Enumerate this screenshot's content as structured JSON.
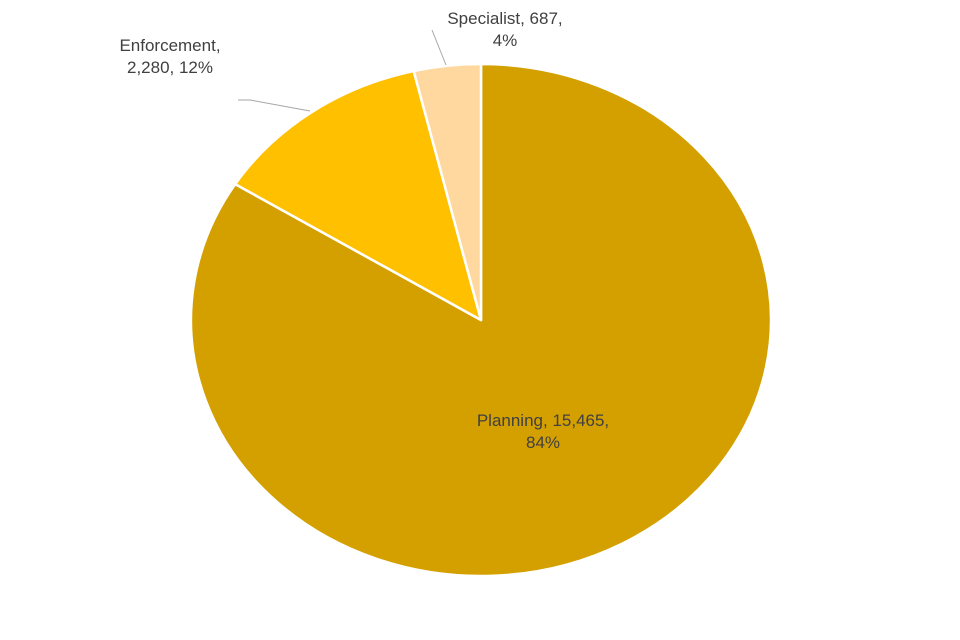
{
  "chart_data": {
    "type": "pie",
    "title": "",
    "categories": [
      "Planning",
      "Enforcement",
      "Specialist"
    ],
    "values": [
      15465,
      2280,
      687
    ],
    "percentages": [
      84,
      12,
      4
    ],
    "colors": [
      "#D4A000",
      "#FFC000",
      "#FFD8A0"
    ],
    "labels": [
      {
        "line1": "Planning, 15,465,",
        "line2": "84%"
      },
      {
        "line1": "Enforcement,",
        "line2": "2,280, 12%"
      },
      {
        "line1": "Specialist, 687,",
        "line2": "4%"
      }
    ],
    "legend": "none",
    "start_angle": "top, counter-clockwise for small slices"
  }
}
